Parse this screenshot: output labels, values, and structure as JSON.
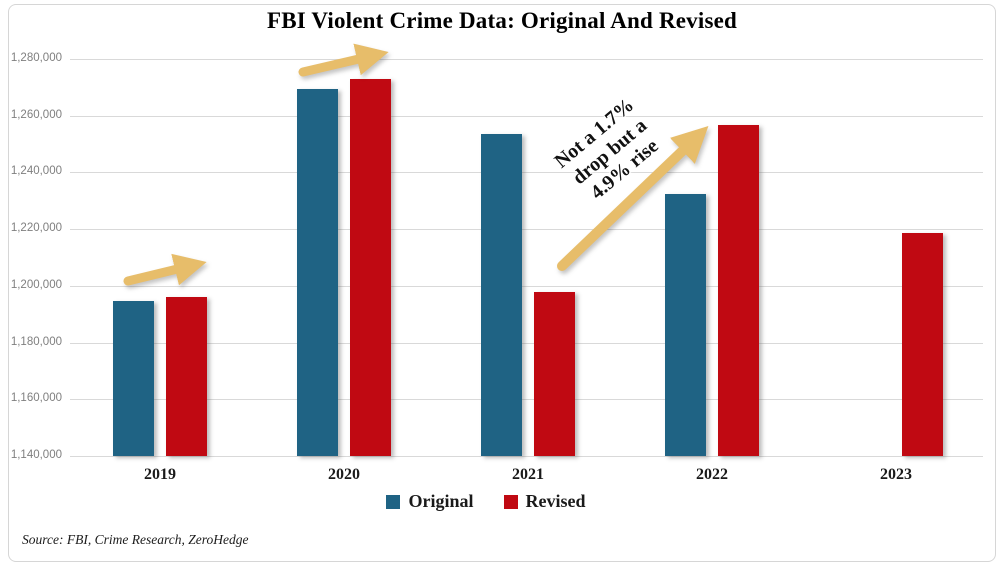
{
  "title": "FBI Violent Crime Data: Original And Revised",
  "source": "Source: FBI, Crime Research, ZeroHedge",
  "annotation": {
    "lines": [
      "Not a 1.7%",
      "drop but a",
      "4.9% rise"
    ]
  },
  "legend": {
    "items": [
      {
        "label": "Original",
        "color": "#1F6384"
      },
      {
        "label": "Revised",
        "color": "#C00912"
      }
    ]
  },
  "colors": {
    "original": "#1F6384",
    "revised": "#C00912",
    "arrow": "#E7BD6A",
    "gridline": "#D9D9D9",
    "axis_label": "#7F7F7F"
  },
  "chart_data": {
    "type": "bar",
    "title": "FBI Violent Crime Data: Original And Revised",
    "categories": [
      "2019",
      "2020",
      "2021",
      "2022",
      "2023"
    ],
    "series": [
      {
        "name": "Original",
        "color": "#1F6384",
        "values": [
          1194800,
          1269300,
          1253500,
          1232500,
          null
        ]
      },
      {
        "name": "Revised",
        "color": "#C00912",
        "values": [
          1195900,
          1272900,
          1197900,
          1256700,
          1218500
        ]
      }
    ],
    "xlabel": "",
    "ylabel": "",
    "ylim": [
      1140000,
      1280000
    ],
    "ytick_step": 20000,
    "ytick_format": "comma",
    "grid": true,
    "legend_position": "bottom",
    "annotations": [
      "Not a 1.7% drop but a 4.9% rise"
    ]
  }
}
